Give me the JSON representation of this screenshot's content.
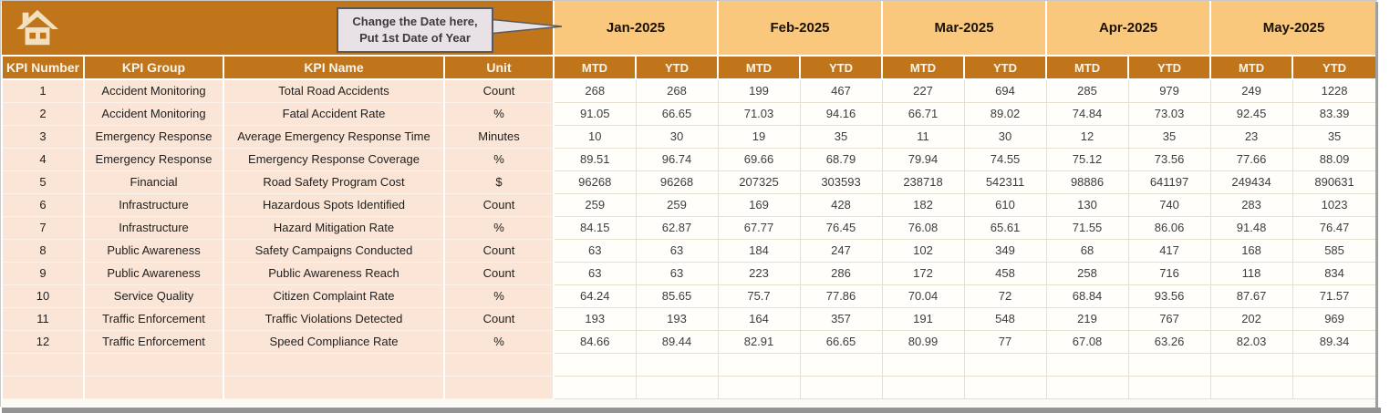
{
  "callout": {
    "line1": "Change the Date here,",
    "line2": "Put 1st Date of Year"
  },
  "columns": {
    "kpi_number": "KPI Number",
    "kpi_group": "KPI Group",
    "kpi_name": "KPI Name",
    "unit": "Unit"
  },
  "months": [
    "Jan-2025",
    "Feb-2025",
    "Mar-2025",
    "Apr-2025",
    "May-2025"
  ],
  "sub_columns": [
    "MTD",
    "YTD"
  ],
  "icons": {
    "home": "home-icon"
  },
  "colors": {
    "header_dark": "#C0751B",
    "header_light": "#F9C87D",
    "row_tint": "#FBE5D6",
    "grid_line": "#E7DECB",
    "callout_fill": "#E8E2E7",
    "header_text": "#FCF5E8"
  },
  "rows": [
    {
      "number": "1",
      "group": "Accident Monitoring",
      "name": "Total Road Accidents",
      "unit": "Count",
      "values": [
        "268",
        "268",
        "199",
        "467",
        "227",
        "694",
        "285",
        "979",
        "249",
        "1228"
      ]
    },
    {
      "number": "2",
      "group": "Accident Monitoring",
      "name": "Fatal Accident Rate",
      "unit": "%",
      "values": [
        "91.05",
        "66.65",
        "71.03",
        "94.16",
        "66.71",
        "89.02",
        "74.84",
        "73.03",
        "92.45",
        "83.39"
      ]
    },
    {
      "number": "3",
      "group": "Emergency Response",
      "name": "Average Emergency Response Time",
      "unit": "Minutes",
      "values": [
        "10",
        "30",
        "19",
        "35",
        "11",
        "30",
        "12",
        "35",
        "23",
        "35"
      ]
    },
    {
      "number": "4",
      "group": "Emergency Response",
      "name": "Emergency Response Coverage",
      "unit": "%",
      "values": [
        "89.51",
        "96.74",
        "69.66",
        "68.79",
        "79.94",
        "74.55",
        "75.12",
        "73.56",
        "77.66",
        "88.09"
      ]
    },
    {
      "number": "5",
      "group": "Financial",
      "name": "Road Safety Program Cost",
      "unit": "$",
      "values": [
        "96268",
        "96268",
        "207325",
        "303593",
        "238718",
        "542311",
        "98886",
        "641197",
        "249434",
        "890631"
      ]
    },
    {
      "number": "6",
      "group": "Infrastructure",
      "name": "Hazardous Spots Identified",
      "unit": "Count",
      "values": [
        "259",
        "259",
        "169",
        "428",
        "182",
        "610",
        "130",
        "740",
        "283",
        "1023"
      ]
    },
    {
      "number": "7",
      "group": "Infrastructure",
      "name": "Hazard Mitigation Rate",
      "unit": "%",
      "values": [
        "84.15",
        "62.87",
        "67.77",
        "76.45",
        "76.08",
        "65.61",
        "71.55",
        "86.06",
        "91.48",
        "76.47"
      ]
    },
    {
      "number": "8",
      "group": "Public Awareness",
      "name": "Safety Campaigns Conducted",
      "unit": "Count",
      "values": [
        "63",
        "63",
        "184",
        "247",
        "102",
        "349",
        "68",
        "417",
        "168",
        "585"
      ]
    },
    {
      "number": "9",
      "group": "Public Awareness",
      "name": "Public Awareness Reach",
      "unit": "Count",
      "values": [
        "63",
        "63",
        "223",
        "286",
        "172",
        "458",
        "258",
        "716",
        "118",
        "834"
      ]
    },
    {
      "number": "10",
      "group": "Service Quality",
      "name": "Citizen Complaint Rate",
      "unit": "%",
      "values": [
        "64.24",
        "85.65",
        "75.7",
        "77.86",
        "70.04",
        "72",
        "68.84",
        "93.56",
        "87.67",
        "71.57"
      ]
    },
    {
      "number": "11",
      "group": "Traffic Enforcement",
      "name": "Traffic Violations Detected",
      "unit": "Count",
      "values": [
        "193",
        "193",
        "164",
        "357",
        "191",
        "548",
        "219",
        "767",
        "202",
        "969"
      ]
    },
    {
      "number": "12",
      "group": "Traffic Enforcement",
      "name": "Speed Compliance Rate",
      "unit": "%",
      "values": [
        "84.66",
        "89.44",
        "82.91",
        "66.65",
        "80.99",
        "77",
        "67.08",
        "63.26",
        "82.03",
        "89.34"
      ]
    }
  ],
  "empty_row_count": 2
}
